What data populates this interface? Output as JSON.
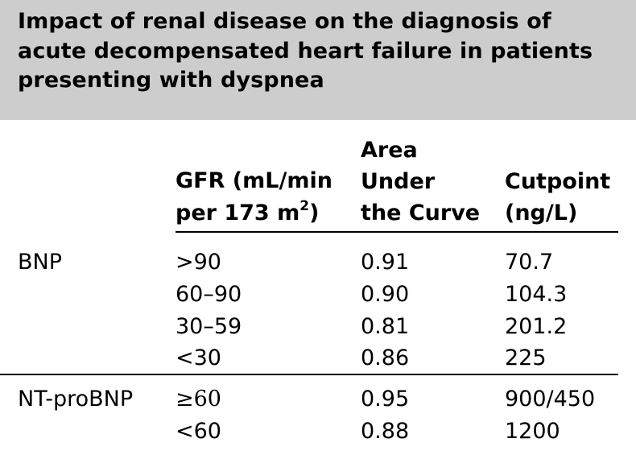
{
  "title": "Impact of renal disease on the diagnosis of acute decompensated heart failure in patients presenting with dyspnea",
  "title_lines": [
    "Impact of renal disease on the diagnosis of",
    "acute decompensated heart failure in patients",
    "presenting with dyspnea"
  ],
  "headers": {
    "gfr_line1": "GFR (mL/min",
    "gfr_line2_prefix": "per 173 m",
    "gfr_line2_sup": "2",
    "gfr_line2_suffix": ")",
    "auc_line1": "Area",
    "auc_line2": "Under",
    "auc_line3": "the Curve",
    "cut_line1": "Cutpoint",
    "cut_line2": "(ng/L)"
  },
  "groups": [
    {
      "label": "BNP",
      "rows": [
        {
          "gfr": ">90",
          "auc": "0.91",
          "cutpoint": "70.7"
        },
        {
          "gfr": "60–90",
          "auc": "0.90",
          "cutpoint": "104.3"
        },
        {
          "gfr": "30–59",
          "auc": "0.81",
          "cutpoint": "201.2"
        },
        {
          "gfr": "<30",
          "auc": "0.86",
          "cutpoint": "225"
        }
      ]
    },
    {
      "label": "NT-proBNP",
      "rows": [
        {
          "gfr": "≥60",
          "auc": "0.95",
          "cutpoint": "900/450"
        },
        {
          "gfr": "<60",
          "auc": "0.88",
          "cutpoint": "1200"
        }
      ]
    }
  ],
  "colors": {
    "title_bg": "#cdcdcd",
    "text": "#000000",
    "rules": "#000000"
  }
}
